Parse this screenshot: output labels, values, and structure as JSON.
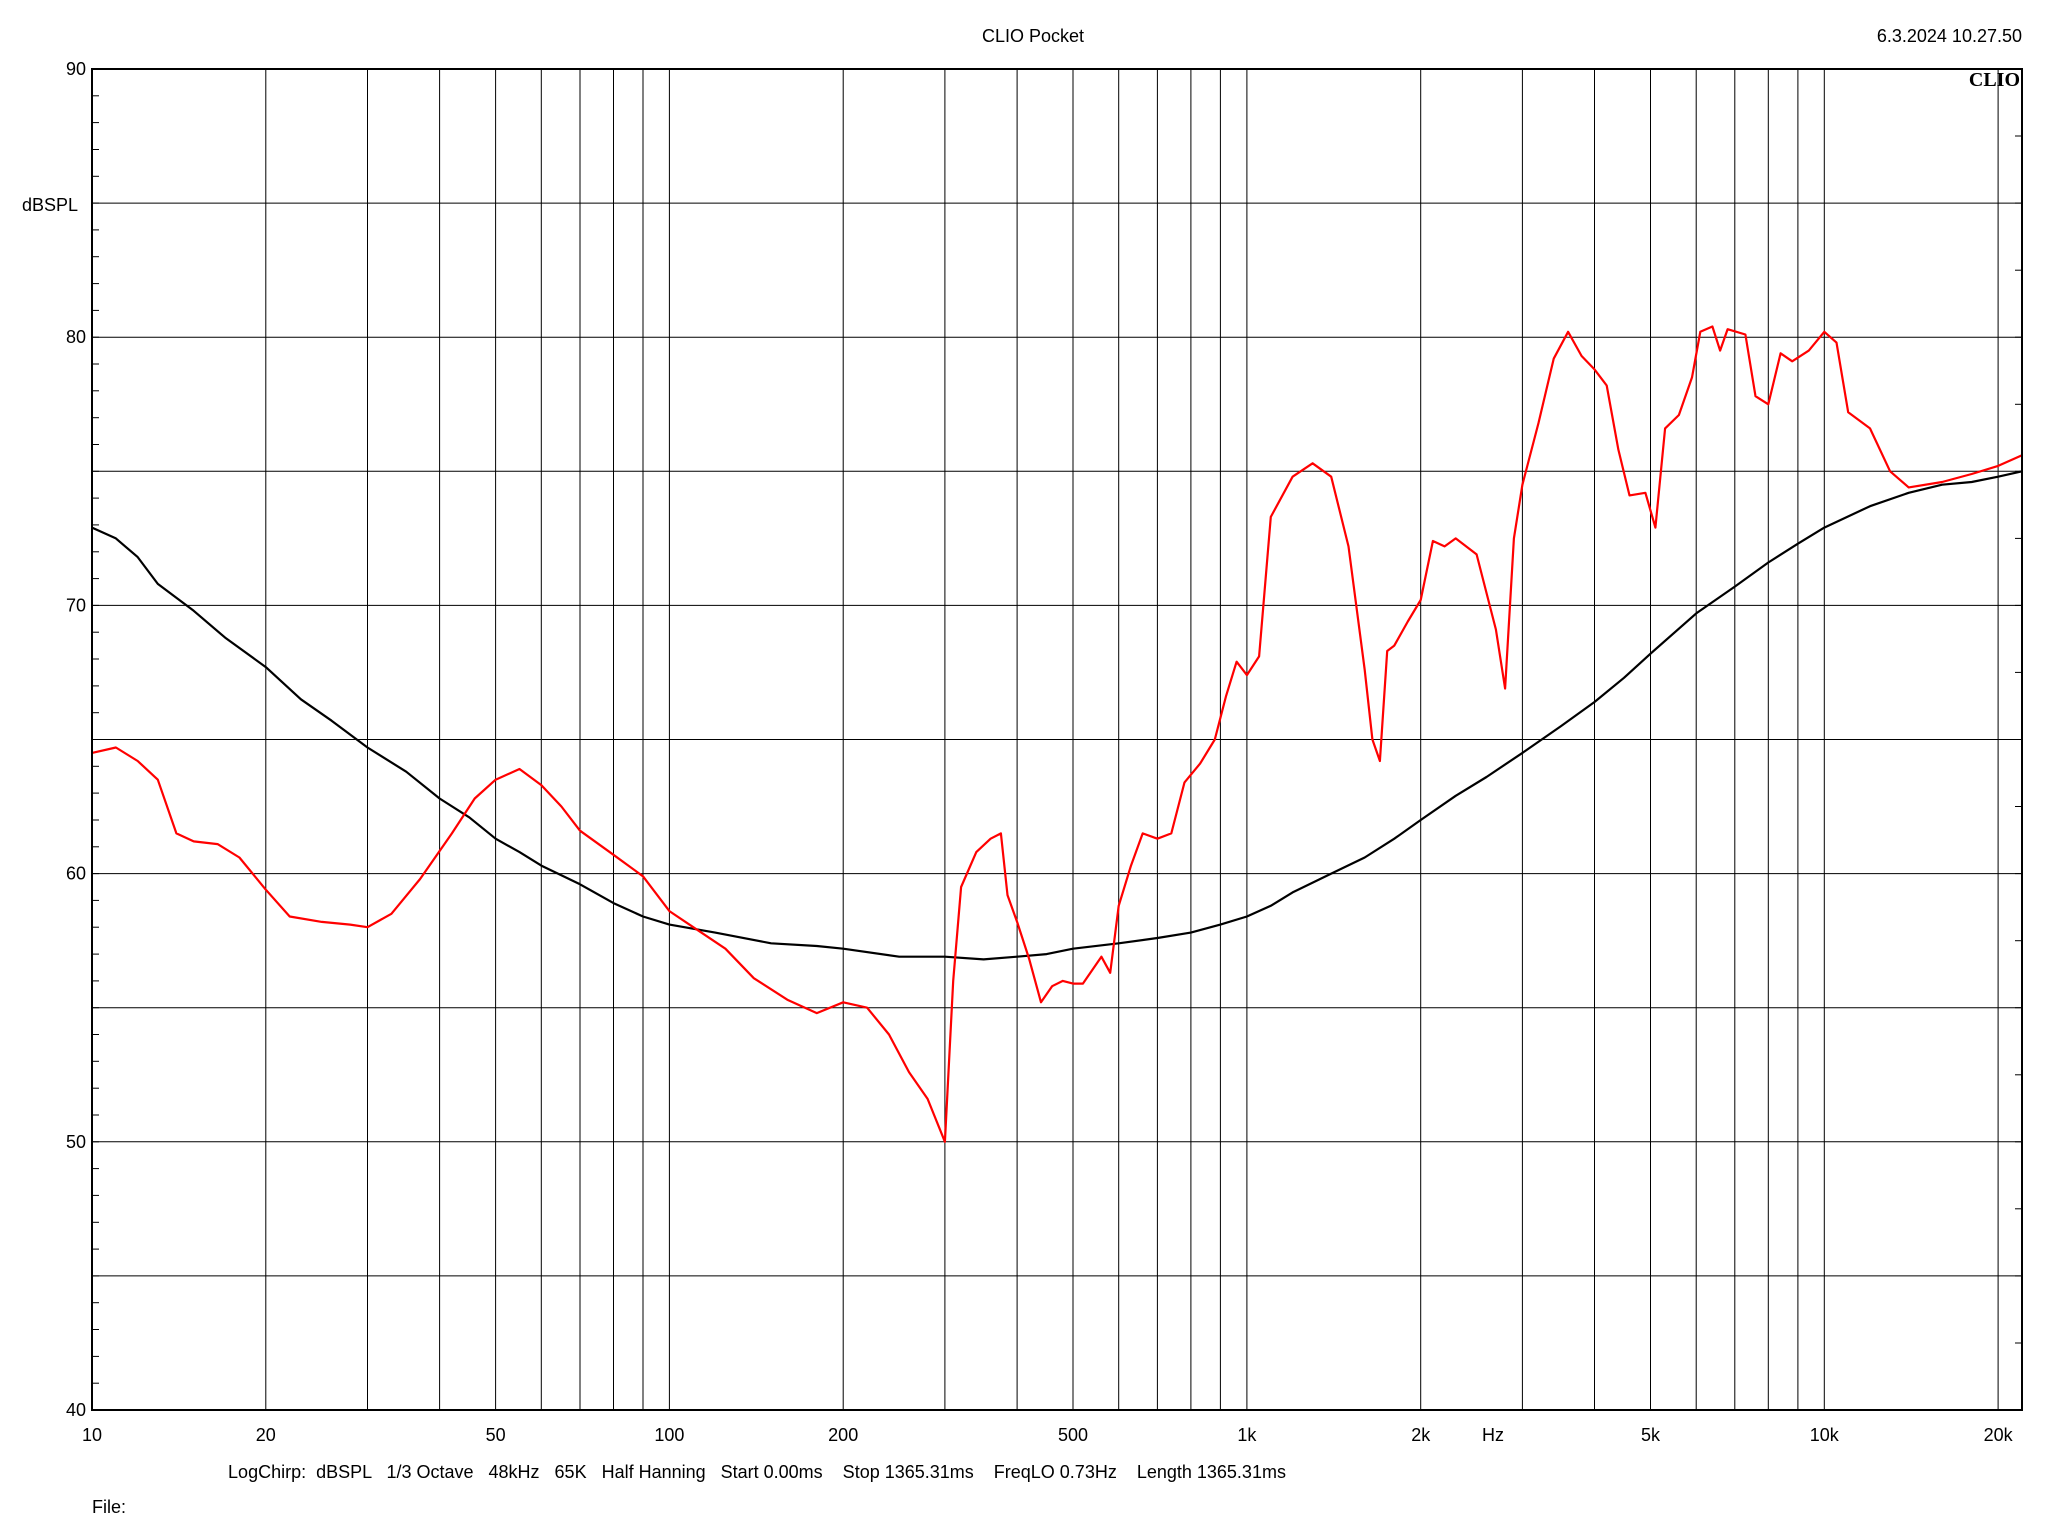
{
  "header": {
    "title": "CLIO Pocket",
    "datetime": "6.3.2024 10.27.50",
    "logo": "CLIO"
  },
  "footer": {
    "info": "LogChirp:  dBSPL   1/3 Octave   48kHz   65K   Half Hanning   Start 0.00ms    Stop 1365.31ms    FreqLO 0.73Hz    Length 1365.31ms",
    "file_label": "File:"
  },
  "chart_data": {
    "type": "line",
    "title": "CLIO Pocket",
    "xlabel": "Hz",
    "ylabel": "dBSPL",
    "xscale": "log",
    "xlim": [
      10,
      22000
    ],
    "ylim": [
      40,
      90
    ],
    "grid": true,
    "x_ticks": [
      {
        "value": 10,
        "label": "10"
      },
      {
        "value": 20,
        "label": "20"
      },
      {
        "value": 50,
        "label": "50"
      },
      {
        "value": 100,
        "label": "100"
      },
      {
        "value": 200,
        "label": "200"
      },
      {
        "value": 500,
        "label": "500"
      },
      {
        "value": 1000,
        "label": "1k"
      },
      {
        "value": 2000,
        "label": "2k"
      },
      {
        "value": 5000,
        "label": "5k"
      },
      {
        "value": 10000,
        "label": "10k"
      },
      {
        "value": 20000,
        "label": "20k"
      }
    ],
    "y_ticks": [
      {
        "value": 40,
        "label": "40"
      },
      {
        "value": 50,
        "label": "50"
      },
      {
        "value": 60,
        "label": "60"
      },
      {
        "value": 70,
        "label": "70"
      },
      {
        "value": 80,
        "label": "80"
      },
      {
        "value": 90,
        "label": "90"
      }
    ],
    "series": [
      {
        "color": "#ff0000",
        "points": [
          [
            10,
            64.5
          ],
          [
            11,
            64.7
          ],
          [
            12,
            64.2
          ],
          [
            13,
            63.5
          ],
          [
            14,
            61.5
          ],
          [
            15,
            61.2
          ],
          [
            16.5,
            61.1
          ],
          [
            18,
            60.6
          ],
          [
            20,
            59.4
          ],
          [
            22,
            58.4
          ],
          [
            25,
            58.2
          ],
          [
            28,
            58.1
          ],
          [
            30,
            58.0
          ],
          [
            33,
            58.5
          ],
          [
            37,
            59.8
          ],
          [
            42,
            61.5
          ],
          [
            46,
            62.8
          ],
          [
            50,
            63.5
          ],
          [
            55,
            63.9
          ],
          [
            60,
            63.3
          ],
          [
            65,
            62.5
          ],
          [
            70,
            61.6
          ],
          [
            80,
            60.7
          ],
          [
            90,
            59.9
          ],
          [
            100,
            58.6
          ],
          [
            110,
            58.0
          ],
          [
            125,
            57.2
          ],
          [
            140,
            56.1
          ],
          [
            160,
            55.3
          ],
          [
            180,
            54.8
          ],
          [
            200,
            55.2
          ],
          [
            220,
            55.0
          ],
          [
            240,
            54.0
          ],
          [
            260,
            52.6
          ],
          [
            280,
            51.6
          ],
          [
            300,
            50.0
          ],
          [
            310,
            56.0
          ],
          [
            320,
            59.5
          ],
          [
            340,
            60.8
          ],
          [
            360,
            61.3
          ],
          [
            375,
            61.5
          ],
          [
            385,
            59.2
          ],
          [
            400,
            58.2
          ],
          [
            420,
            56.8
          ],
          [
            440,
            55.2
          ],
          [
            460,
            55.8
          ],
          [
            480,
            56.0
          ],
          [
            500,
            55.9
          ],
          [
            520,
            55.9
          ],
          [
            560,
            56.9
          ],
          [
            580,
            56.3
          ],
          [
            600,
            58.8
          ],
          [
            630,
            60.3
          ],
          [
            660,
            61.5
          ],
          [
            700,
            61.3
          ],
          [
            740,
            61.5
          ],
          [
            780,
            63.4
          ],
          [
            830,
            64.1
          ],
          [
            880,
            65.0
          ],
          [
            920,
            66.6
          ],
          [
            960,
            67.9
          ],
          [
            1000,
            67.4
          ],
          [
            1050,
            68.1
          ],
          [
            1100,
            73.3
          ],
          [
            1200,
            74.8
          ],
          [
            1300,
            75.3
          ],
          [
            1400,
            74.8
          ],
          [
            1500,
            72.2
          ],
          [
            1600,
            67.6
          ],
          [
            1650,
            65.0
          ],
          [
            1700,
            64.2
          ],
          [
            1750,
            68.3
          ],
          [
            1800,
            68.5
          ],
          [
            1900,
            69.4
          ],
          [
            2000,
            70.2
          ],
          [
            2100,
            72.4
          ],
          [
            2200,
            72.2
          ],
          [
            2300,
            72.5
          ],
          [
            2500,
            71.9
          ],
          [
            2700,
            69.1
          ],
          [
            2800,
            66.9
          ],
          [
            2900,
            72.5
          ],
          [
            3000,
            74.5
          ],
          [
            3200,
            76.8
          ],
          [
            3400,
            79.2
          ],
          [
            3600,
            80.2
          ],
          [
            3800,
            79.3
          ],
          [
            4000,
            78.8
          ],
          [
            4200,
            78.2
          ],
          [
            4400,
            75.8
          ],
          [
            4600,
            74.1
          ],
          [
            4900,
            74.2
          ],
          [
            5100,
            72.9
          ],
          [
            5300,
            76.6
          ],
          [
            5600,
            77.1
          ],
          [
            5900,
            78.5
          ],
          [
            6100,
            80.2
          ],
          [
            6400,
            80.4
          ],
          [
            6600,
            79.5
          ],
          [
            6800,
            80.3
          ],
          [
            7300,
            80.1
          ],
          [
            7600,
            77.8
          ],
          [
            8000,
            77.5
          ],
          [
            8400,
            79.4
          ],
          [
            8800,
            79.1
          ],
          [
            9400,
            79.5
          ],
          [
            10000,
            80.2
          ],
          [
            10500,
            79.8
          ],
          [
            11000,
            77.2
          ],
          [
            12000,
            76.6
          ],
          [
            13000,
            75.0
          ],
          [
            14000,
            74.4
          ],
          [
            16000,
            74.6
          ],
          [
            18000,
            74.9
          ],
          [
            20000,
            75.2
          ],
          [
            22000,
            75.6
          ]
        ]
      },
      {
        "color": "#000000",
        "points": [
          [
            10,
            72.9
          ],
          [
            11,
            72.5
          ],
          [
            12,
            71.8
          ],
          [
            13,
            70.8
          ],
          [
            15,
            69.8
          ],
          [
            17,
            68.8
          ],
          [
            20,
            67.7
          ],
          [
            23,
            66.5
          ],
          [
            26,
            65.7
          ],
          [
            30,
            64.7
          ],
          [
            35,
            63.8
          ],
          [
            40,
            62.8
          ],
          [
            45,
            62.1
          ],
          [
            50,
            61.3
          ],
          [
            55,
            60.8
          ],
          [
            60,
            60.3
          ],
          [
            70,
            59.6
          ],
          [
            80,
            58.9
          ],
          [
            90,
            58.4
          ],
          [
            100,
            58.1
          ],
          [
            120,
            57.8
          ],
          [
            150,
            57.4
          ],
          [
            180,
            57.3
          ],
          [
            200,
            57.2
          ],
          [
            250,
            56.9
          ],
          [
            300,
            56.9
          ],
          [
            350,
            56.8
          ],
          [
            400,
            56.9
          ],
          [
            450,
            57.0
          ],
          [
            500,
            57.2
          ],
          [
            600,
            57.4
          ],
          [
            700,
            57.6
          ],
          [
            800,
            57.8
          ],
          [
            900,
            58.1
          ],
          [
            1000,
            58.4
          ],
          [
            1100,
            58.8
          ],
          [
            1200,
            59.3
          ],
          [
            1400,
            60.0
          ],
          [
            1600,
            60.6
          ],
          [
            1800,
            61.3
          ],
          [
            2000,
            62.0
          ],
          [
            2300,
            62.9
          ],
          [
            2600,
            63.6
          ],
          [
            3000,
            64.5
          ],
          [
            3500,
            65.5
          ],
          [
            4000,
            66.4
          ],
          [
            4500,
            67.3
          ],
          [
            5000,
            68.2
          ],
          [
            6000,
            69.7
          ],
          [
            7000,
            70.7
          ],
          [
            8000,
            71.6
          ],
          [
            9000,
            72.3
          ],
          [
            10000,
            72.9
          ],
          [
            12000,
            73.7
          ],
          [
            14000,
            74.2
          ],
          [
            16000,
            74.5
          ],
          [
            18000,
            74.6
          ],
          [
            20000,
            74.8
          ],
          [
            22000,
            75.0
          ]
        ]
      }
    ]
  }
}
